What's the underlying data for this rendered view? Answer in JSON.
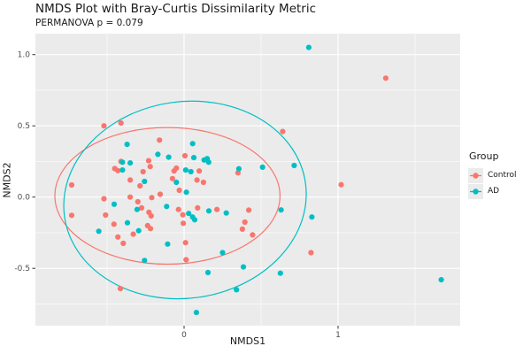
{
  "title": "NMDS Plot with Bray-Curtis Dissimilarity Metric",
  "subtitle": "PERMANOVA p = 0.079",
  "panel": {
    "background": "#ebebeb",
    "grid_color": "#ffffff",
    "tick_color": "#333333",
    "tick_label_color": "#4d4d4d"
  },
  "chart_data": {
    "type": "scatter",
    "title": "NMDS Plot with Bray-Curtis Dissimilarity Metric",
    "subtitle": "PERMANOVA p = 0.079",
    "xlabel": "NMDS1",
    "ylabel": "NMDS2",
    "xlim": [
      -0.97,
      1.79
    ],
    "ylim": [
      -0.9,
      1.15
    ],
    "grid": true,
    "x_major_ticks": [
      0,
      1
    ],
    "x_tick_labels": [
      "0",
      "1"
    ],
    "x_minor_ticks": [
      -0.5,
      0.5,
      1.5
    ],
    "y_major_ticks": [
      1.0,
      0.5,
      0.0,
      -0.5
    ],
    "y_tick_labels": [
      "1.0",
      "0.5",
      "0.0",
      "-0.5"
    ],
    "y_minor_ticks": [
      0.75,
      0.25,
      -0.25,
      -0.75
    ],
    "legend": {
      "title": "Group",
      "position": "right",
      "entries": [
        {
          "label": "Control",
          "color": "#F8766D"
        },
        {
          "label": "AD",
          "color": "#00BFC4"
        }
      ]
    },
    "series": [
      {
        "name": "Control",
        "color": "#F8766D",
        "points": [
          [
            -0.73,
            0.085
          ],
          [
            -0.73,
            -0.128
          ],
          [
            -0.52,
            0.5
          ],
          [
            -0.41,
            0.52
          ],
          [
            -0.45,
            0.2
          ],
          [
            -0.41,
            0.25
          ],
          [
            -0.43,
            0.186
          ],
          [
            -0.35,
            0.12
          ],
          [
            -0.266,
            0.178
          ],
          [
            -0.23,
            0.255
          ],
          [
            -0.22,
            0.214
          ],
          [
            -0.16,
            0.4
          ],
          [
            -0.05,
            0.203
          ],
          [
            0.006,
            0.29
          ],
          [
            0.098,
            0.183
          ],
          [
            -0.065,
            0.183
          ],
          [
            -0.075,
            0.13
          ],
          [
            0.084,
            0.12
          ],
          [
            0.126,
            0.104
          ],
          [
            -0.031,
            0.048
          ],
          [
            -0.286,
            0.079
          ],
          [
            -0.21,
            -0.004
          ],
          [
            -0.155,
            0.02
          ],
          [
            -0.35,
            0.0
          ],
          [
            -0.52,
            -0.012
          ],
          [
            -0.3,
            -0.033
          ],
          [
            -0.276,
            -0.076
          ],
          [
            -0.51,
            -0.126
          ],
          [
            -0.455,
            -0.19
          ],
          [
            -0.237,
            -0.2
          ],
          [
            -0.218,
            -0.221
          ],
          [
            -0.214,
            -0.132
          ],
          [
            -0.228,
            -0.107
          ],
          [
            -0.036,
            -0.087
          ],
          [
            -0.008,
            -0.124
          ],
          [
            -0.005,
            -0.184
          ],
          [
            0.088,
            -0.076
          ],
          [
            0.213,
            -0.087
          ],
          [
            -0.43,
            -0.28
          ],
          [
            -0.395,
            -0.325
          ],
          [
            -0.33,
            -0.26
          ],
          [
            -0.414,
            -0.642
          ],
          [
            0.01,
            -0.32
          ],
          [
            0.013,
            -0.44
          ],
          [
            0.35,
            0.17
          ],
          [
            0.42,
            -0.091
          ],
          [
            0.395,
            -0.176
          ],
          [
            0.379,
            -0.225
          ],
          [
            0.445,
            -0.265
          ],
          [
            0.64,
            0.46
          ],
          [
            0.824,
            -0.39
          ],
          [
            1.02,
            0.087
          ],
          [
            1.31,
            0.835
          ]
        ]
      },
      {
        "name": "AD",
        "color": "#00BFC4",
        "points": [
          [
            0.81,
            1.05
          ],
          [
            1.67,
            -0.58
          ],
          [
            0.83,
            -0.14
          ],
          [
            0.715,
            0.222
          ],
          [
            0.63,
            -0.09
          ],
          [
            0.625,
            -0.534
          ],
          [
            0.51,
            0.21
          ],
          [
            0.356,
            0.199
          ],
          [
            0.385,
            -0.49
          ],
          [
            0.34,
            -0.65
          ],
          [
            0.25,
            -0.39
          ],
          [
            0.155,
            -0.53
          ],
          [
            0.08,
            -0.81
          ],
          [
            -0.107,
            -0.33
          ],
          [
            -0.257,
            -0.445
          ],
          [
            0.274,
            -0.112
          ],
          [
            0.161,
            -0.097
          ],
          [
            0.03,
            -0.115
          ],
          [
            0.055,
            -0.14
          ],
          [
            0.069,
            -0.159
          ],
          [
            -0.113,
            -0.066
          ],
          [
            -0.305,
            -0.087
          ],
          [
            -0.368,
            -0.18
          ],
          [
            -0.295,
            -0.236
          ],
          [
            -0.554,
            -0.24
          ],
          [
            -0.454,
            -0.05
          ],
          [
            -0.37,
            0.37
          ],
          [
            -0.4,
            0.245
          ],
          [
            -0.4,
            0.19
          ],
          [
            -0.35,
            0.24
          ],
          [
            -0.17,
            0.3
          ],
          [
            -0.1,
            0.28
          ],
          [
            0.056,
            0.375
          ],
          [
            0.063,
            0.277
          ],
          [
            0.13,
            0.26
          ],
          [
            0.15,
            0.27
          ],
          [
            0.16,
            0.245
          ],
          [
            0.044,
            0.178
          ],
          [
            0.011,
            0.19
          ],
          [
            -0.257,
            0.11
          ],
          [
            -0.05,
            0.104
          ],
          [
            0.015,
            0.034
          ]
        ]
      }
    ],
    "ellipses": [
      {
        "group": "Control",
        "color": "#F8766D",
        "cx": -0.108,
        "cy": 0.009,
        "rx": 0.731,
        "ry": 0.48,
        "rotation_deg": 0
      },
      {
        "group": "AD",
        "color": "#00BFC4",
        "cx": 0.006,
        "cy": -0.02,
        "rx": 0.79,
        "ry": 0.69,
        "rotation_deg": -8
      }
    ]
  }
}
